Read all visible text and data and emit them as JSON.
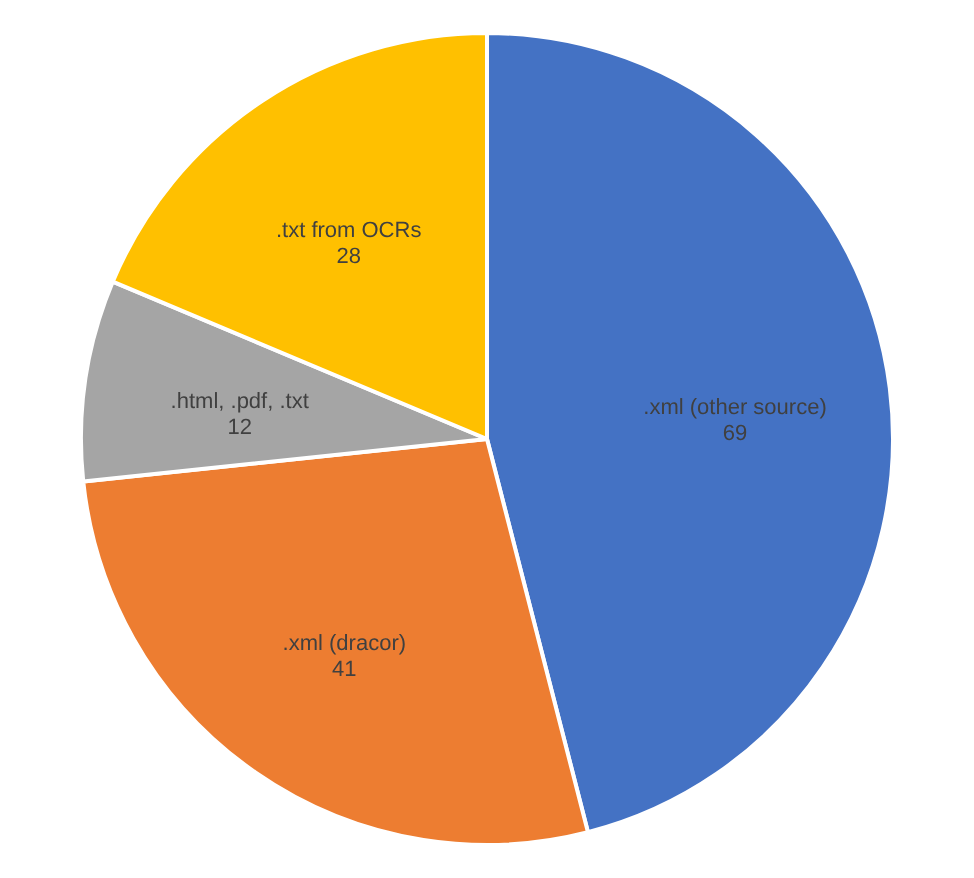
{
  "chart_data": {
    "type": "pie",
    "categories": [
      ".xml (other source)",
      ".xml (dracor)",
      ".html, .pdf, .txt",
      ".txt from OCRs"
    ],
    "values": [
      69,
      41,
      12,
      28
    ],
    "colors": [
      "#4472c4",
      "#ed7d31",
      "#a5a5a5",
      "#ffc000"
    ],
    "data_labels": true,
    "legend": false
  }
}
